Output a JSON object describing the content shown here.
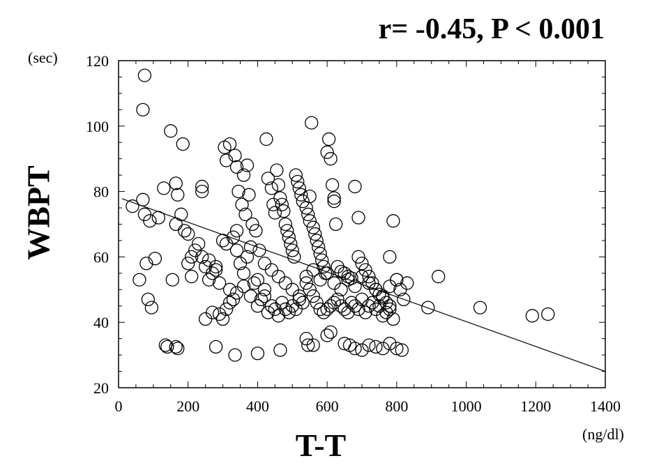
{
  "chart_data": {
    "type": "scatter",
    "title": "r= -0.45, P < 0.001",
    "xlabel": "T-T",
    "ylabel": "WBPT",
    "x_unit": "(ng/dl)",
    "y_unit": "(sec)",
    "xlim": [
      0,
      1400
    ],
    "ylim": [
      20,
      120
    ],
    "x_ticks": [
      0,
      200,
      400,
      600,
      800,
      1000,
      1200,
      1400
    ],
    "y_ticks": [
      20,
      40,
      60,
      80,
      100,
      120
    ],
    "grid": false,
    "regression_line": {
      "x": [
        10,
        1400
      ],
      "y": [
        77.8,
        25
      ]
    },
    "series": [
      {
        "marker": "open-circle",
        "x": [
          75,
          70,
          150,
          185,
          40,
          70,
          75,
          90,
          60,
          115,
          130,
          165,
          170,
          180,
          200,
          210,
          240,
          240,
          190,
          80,
          105,
          85,
          95,
          135,
          165,
          155,
          165,
          250,
          270,
          290,
          305,
          310,
          320,
          335,
          340,
          360,
          370,
          345,
          355,
          365,
          375,
          385,
          395,
          405,
          420,
          425,
          430,
          440,
          445,
          450,
          455,
          460,
          465,
          470,
          475,
          480,
          485,
          490,
          495,
          500,
          505,
          510,
          515,
          520,
          525,
          530,
          540,
          545,
          550,
          555,
          560,
          565,
          570,
          575,
          580,
          585,
          590,
          595,
          600,
          605,
          610,
          615,
          620,
          625,
          630,
          640,
          650,
          660,
          670,
          680,
          690,
          700,
          710,
          720,
          730,
          740,
          750,
          760,
          770,
          780,
          790,
          800,
          810,
          820,
          830,
          890,
          920,
          1040,
          1190,
          1235,
          200,
          210,
          220,
          230,
          240,
          250,
          260,
          270,
          280,
          290,
          300,
          310,
          320,
          330,
          340,
          350,
          360,
          370,
          380,
          390,
          400,
          410,
          420,
          430,
          440,
          450,
          460,
          470,
          480,
          490,
          500,
          510,
          520,
          530,
          540,
          550,
          560,
          570,
          580,
          590,
          600,
          610,
          620,
          630,
          640,
          650,
          660,
          670,
          680,
          690,
          700,
          710,
          720,
          730,
          740,
          750,
          760,
          770,
          780,
          790,
          260,
          280,
          300,
          320,
          340,
          360,
          380,
          400,
          420,
          440,
          460,
          480,
          500,
          520,
          540,
          560,
          580,
          600,
          620,
          640,
          660,
          680,
          700,
          720,
          740,
          760,
          780,
          800,
          140,
          170,
          280,
          335,
          400,
          465,
          545,
          560,
          650,
          665,
          680,
          700,
          720,
          740,
          760,
          780,
          800,
          815,
          550,
          620,
          690,
          780,
          540,
          600,
          610,
          310,
          330,
          340
        ],
        "y": [
          115.5,
          105,
          98.5,
          94.5,
          75.5,
          77.5,
          73,
          71,
          53,
          72,
          81,
          82.5,
          79,
          73,
          67,
          54,
          81.5,
          80,
          68,
          58,
          59.5,
          47,
          44.5,
          33,
          32.5,
          53,
          70,
          41,
          43,
          42.5,
          93.5,
          89.5,
          94.5,
          91,
          87.5,
          85,
          88,
          80,
          76,
          73,
          79,
          70,
          68,
          62,
          58,
          96,
          84,
          81,
          76,
          73.5,
          86.5,
          82,
          78,
          76,
          74,
          70,
          68,
          66,
          64,
          62,
          60,
          85,
          83,
          81,
          79,
          77,
          75,
          73,
          71,
          101,
          69,
          67,
          65,
          63,
          61,
          59,
          57,
          55,
          92,
          96,
          90,
          82,
          78,
          70,
          57,
          55.5,
          55,
          54,
          53.5,
          81.5,
          60,
          58,
          56,
          54,
          52,
          50,
          48.5,
          47.5,
          46,
          45,
          71,
          53,
          50,
          47,
          52,
          44.5,
          54,
          44.5,
          42,
          42.5,
          58,
          60,
          62,
          64,
          60,
          57,
          53,
          55,
          56,
          52,
          41,
          44,
          46,
          47,
          62,
          58,
          55,
          60,
          63,
          52,
          45,
          47,
          48,
          43,
          45,
          44,
          42,
          46,
          44,
          43,
          45,
          44,
          47,
          46,
          52,
          50,
          48,
          46,
          44,
          43,
          44,
          45,
          46,
          47,
          45,
          44,
          43,
          46,
          45,
          44,
          47,
          43,
          45,
          46,
          44,
          45,
          42,
          43,
          44,
          41,
          59,
          57,
          65,
          50,
          49,
          51,
          48,
          53,
          50,
          56,
          54,
          52,
          50,
          48,
          54,
          56,
          53,
          55,
          52,
          50,
          53,
          51,
          54,
          52,
          50,
          48,
          51,
          53,
          32.5,
          32,
          32.5,
          30,
          30.5,
          31.5,
          33,
          33,
          33.5,
          33,
          32,
          31.5,
          33,
          32.5,
          32,
          33.5,
          32,
          31.5,
          78.5,
          77,
          72,
          60,
          35,
          36,
          37,
          64,
          66,
          68
        ]
      }
    ]
  }
}
